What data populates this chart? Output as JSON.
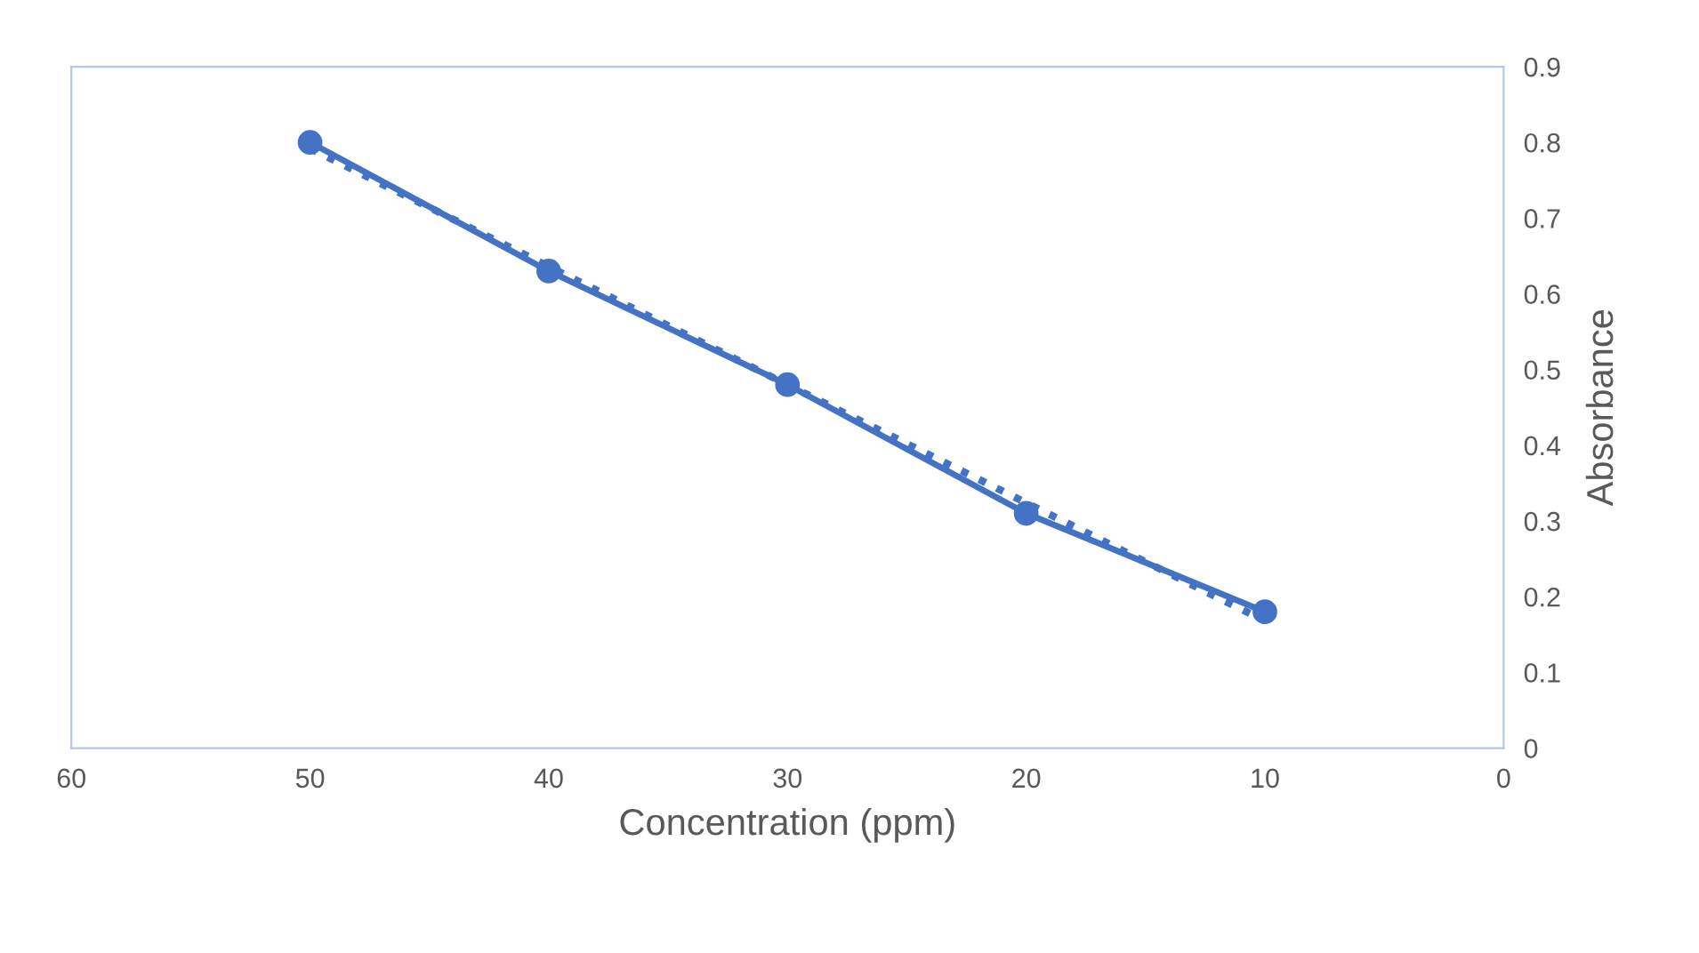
{
  "chart_data": {
    "type": "line",
    "xlabel": "Concentration (ppm)",
    "ylabel": "Absorbance",
    "x": [
      50,
      40,
      30,
      20,
      10
    ],
    "series": [
      {
        "color": "#4472c4",
        "values": [
          0.8,
          0.63,
          0.48,
          0.31,
          0.18
        ],
        "marker": "circle",
        "line_style": "solid"
      },
      {
        "color": "#4472c4",
        "x": [
          50,
          10
        ],
        "values": [
          0.792,
          0.168
        ],
        "marker": "none",
        "line_style": "dotted"
      }
    ],
    "xlim": [
      60,
      0
    ],
    "xticks": [
      60,
      50,
      40,
      30,
      20,
      10,
      0
    ],
    "ylim": [
      0,
      0.9
    ],
    "yticks": [
      0,
      0.1,
      0.2,
      0.3,
      0.4,
      0.5,
      0.6,
      0.7,
      0.8,
      0.9
    ],
    "grid": false,
    "legend": false
  }
}
